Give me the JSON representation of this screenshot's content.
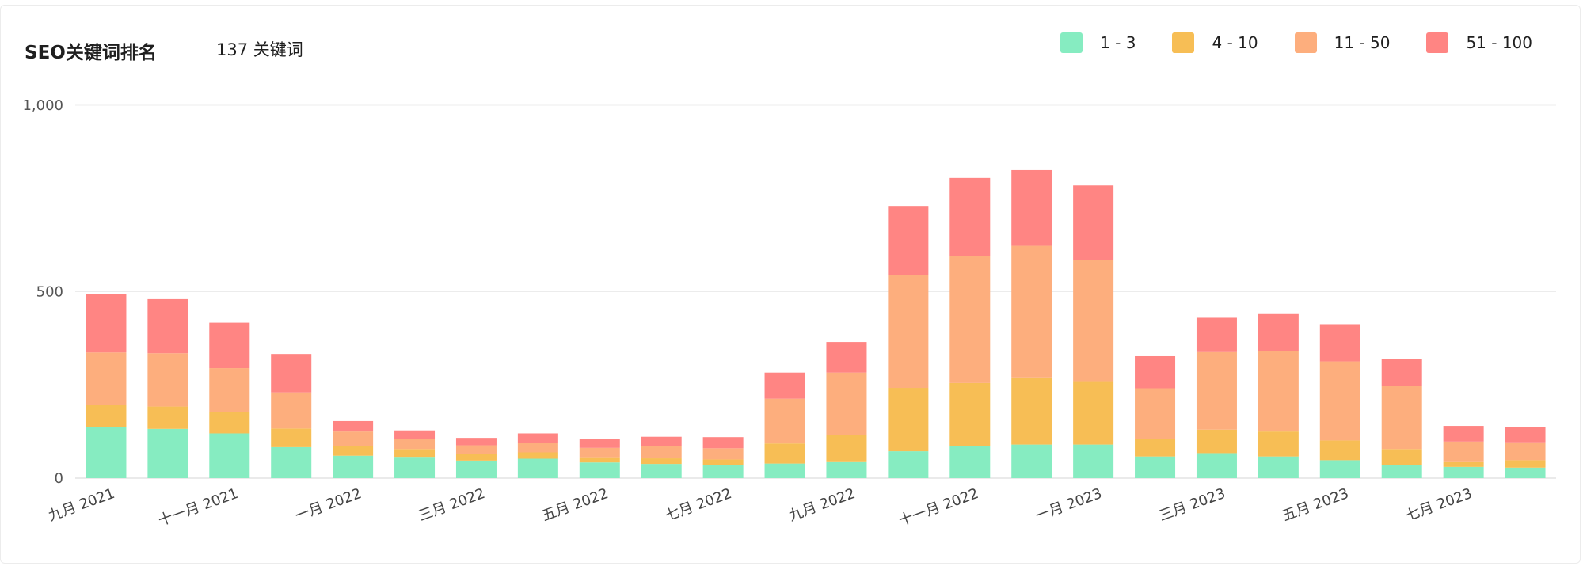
{
  "header": {
    "title": "SEO关键词排名",
    "subtitle": "137 关键词"
  },
  "chart_data": {
    "type": "bar",
    "stacked": true,
    "title": "SEO关键词排名",
    "ylim": [
      0,
      1000
    ],
    "yticks": [
      0,
      500,
      1000
    ],
    "ytick_labels": [
      "0",
      "500",
      "1,000"
    ],
    "grid": true,
    "legend_position": "top-right",
    "x_tick_labels": [
      "九月 2021",
      "十一月 2021",
      "一月 2022",
      "三月 2022",
      "五月 2022",
      "七月 2022",
      "九月 2022",
      "十一月 2022",
      "一月 2023",
      "三月 2023",
      "五月 2023",
      "七月 2023"
    ],
    "series": [
      {
        "name": "1 - 3",
        "color": "#86ecc1",
        "values": [
          137,
          132,
          120,
          83,
          60,
          57,
          47,
          52,
          42,
          38,
          35,
          39,
          45,
          72,
          85,
          90,
          90,
          58,
          67,
          58,
          48,
          35,
          30,
          28
        ]
      },
      {
        "name": "4 - 10",
        "color": "#f7be55",
        "values": [
          60,
          60,
          58,
          50,
          25,
          21,
          18,
          17,
          14,
          15,
          15,
          54,
          70,
          170,
          170,
          180,
          170,
          48,
          63,
          67,
          53,
          43,
          15,
          20
        ]
      },
      {
        "name": "11 - 50",
        "color": "#fdae7d",
        "values": [
          140,
          143,
          117,
          97,
          40,
          28,
          23,
          25,
          25,
          32,
          30,
          120,
          168,
          303,
          340,
          353,
          325,
          135,
          208,
          215,
          212,
          170,
          53,
          48
        ]
      },
      {
        "name": "51 - 100",
        "color": "#ff8583",
        "values": [
          157,
          145,
          122,
          103,
          28,
          22,
          20,
          26,
          23,
          26,
          30,
          70,
          82,
          185,
          210,
          203,
          200,
          86,
          92,
          100,
          100,
          72,
          42,
          42
        ]
      }
    ]
  }
}
